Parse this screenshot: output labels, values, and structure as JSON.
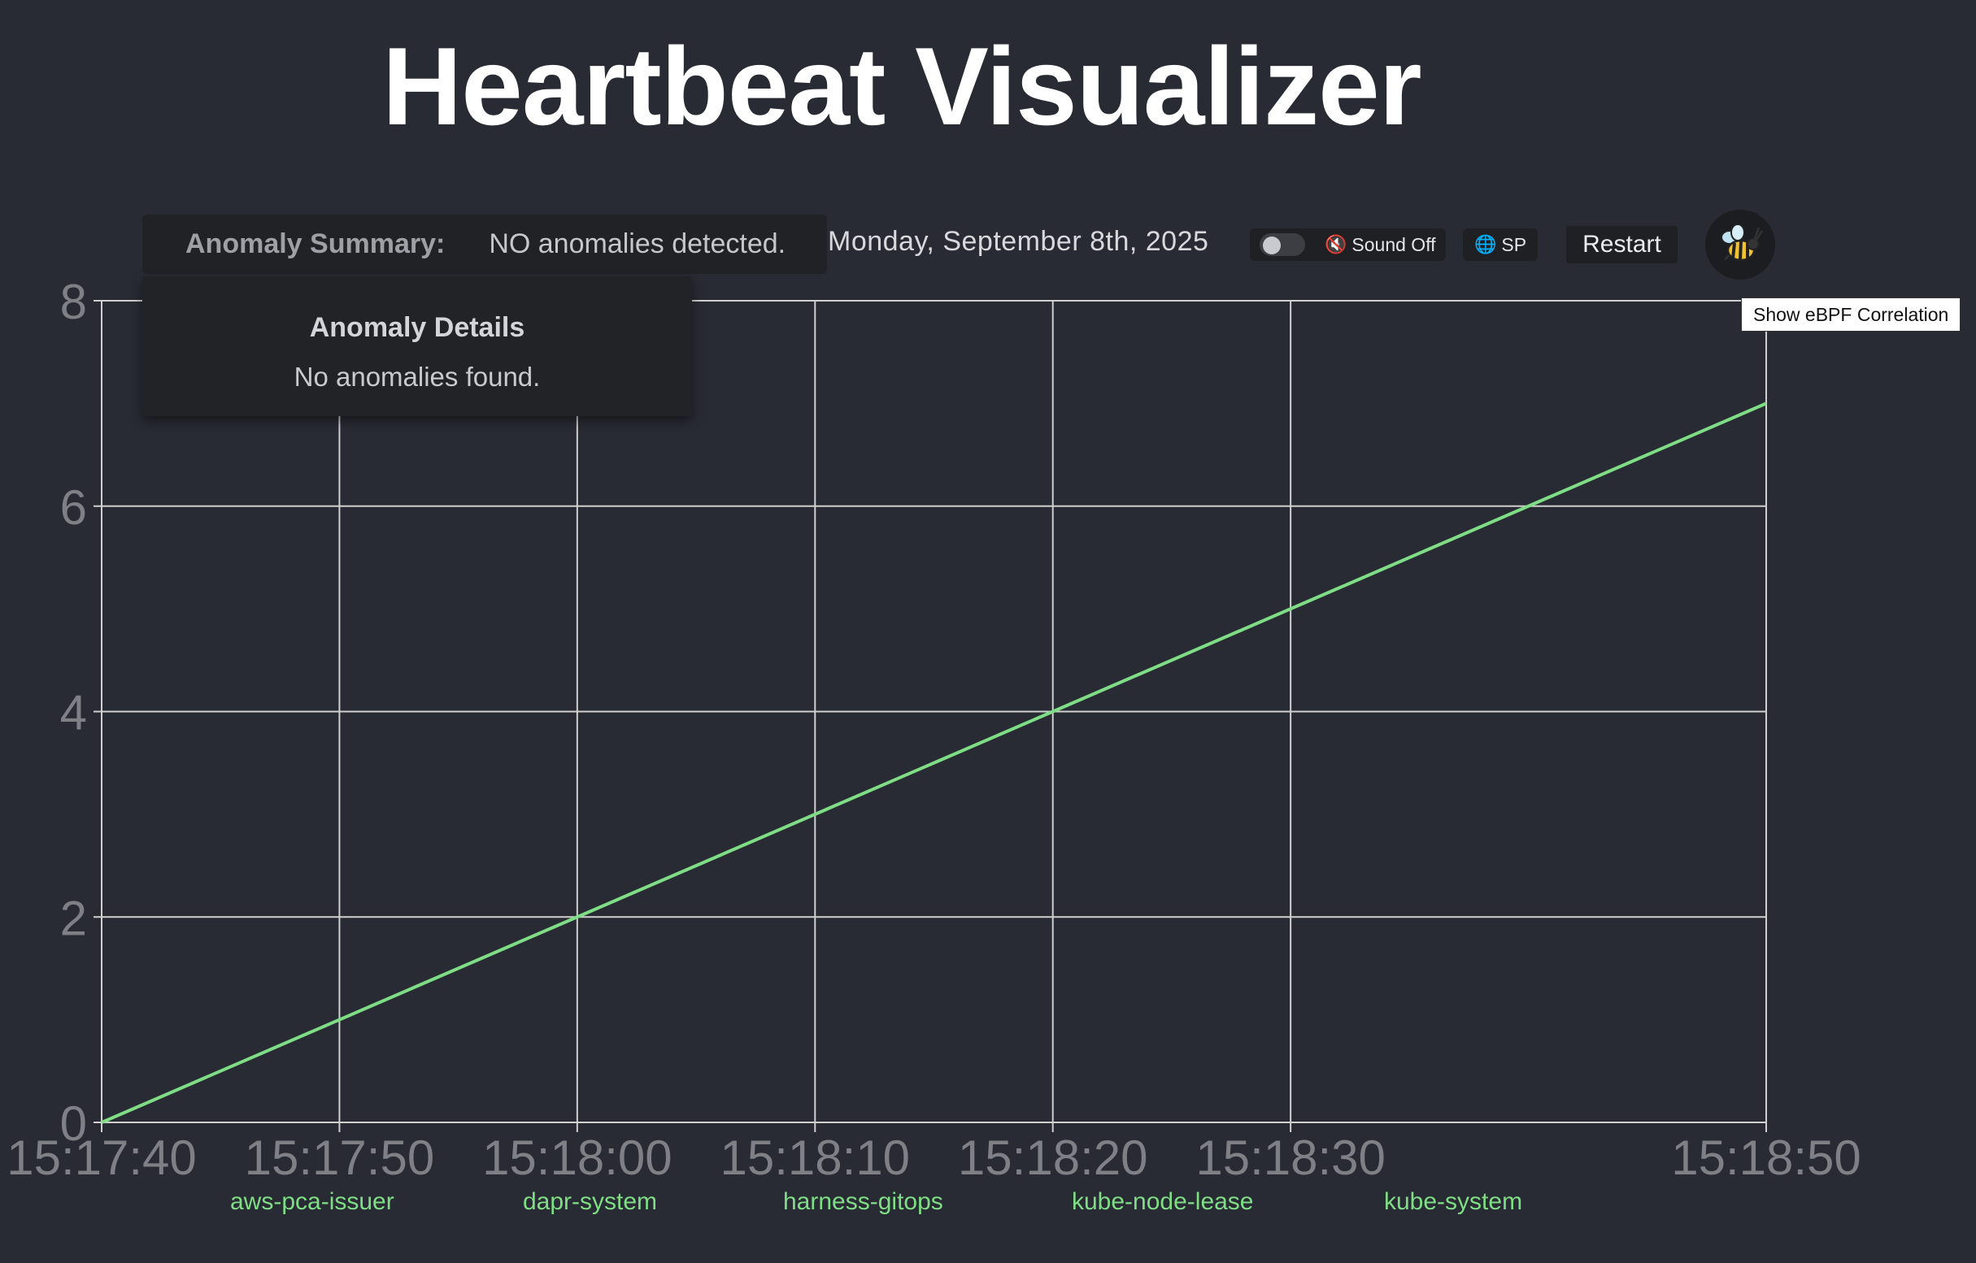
{
  "header": {
    "title": "Heartbeat Visualizer"
  },
  "summary": {
    "label": "Anomaly Summary:",
    "value": "NO anomalies detected."
  },
  "date": "Monday, September 8th, 2025",
  "sound": {
    "label": "Sound Off",
    "enabled": false
  },
  "language": {
    "label": "SP"
  },
  "restart": {
    "label": "Restart"
  },
  "ebpf": {
    "tooltip": "Show eBPF Correlation",
    "icon": "bee-icon"
  },
  "details": {
    "title": "Anomaly Details",
    "body": "No anomalies found."
  },
  "namespaces": [
    "aws-pca-issuer",
    "dapr-system",
    "harness-gitops",
    "kube-node-lease",
    "kube-system"
  ],
  "colors": {
    "background": "#282b33",
    "line": "#7fde85",
    "grid": "#d0d0d0",
    "tick": "#7e8086"
  },
  "chart_data": {
    "type": "line",
    "x_ticks": [
      "15:17:40",
      "15:17:50",
      "15:18:00",
      "15:18:10",
      "15:18:20",
      "15:18:30",
      "15:18:50"
    ],
    "y_ticks": [
      "0",
      "2",
      "4",
      "6",
      "8"
    ],
    "ylim": [
      0,
      8
    ],
    "xlim": [
      "15:17:40",
      "15:18:50"
    ],
    "grid": true,
    "series": [
      {
        "x": [
          "15:17:40",
          "15:18:50"
        ],
        "y": [
          0,
          7
        ]
      }
    ]
  }
}
